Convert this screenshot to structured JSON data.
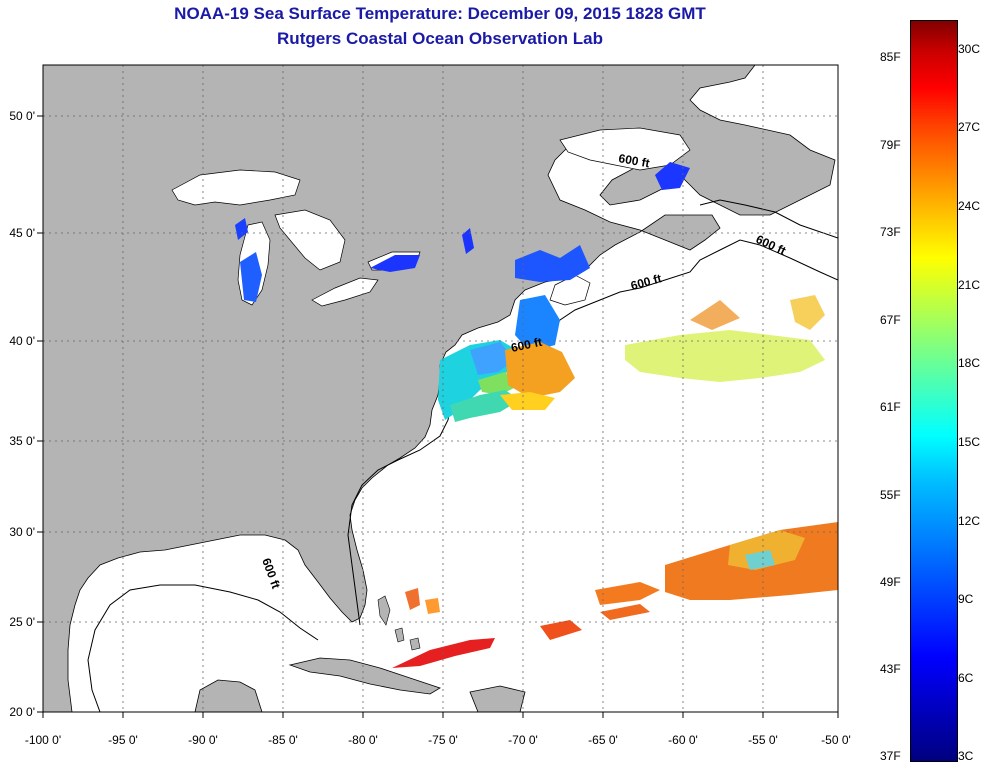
{
  "header": {
    "title_line1": "NOAA-19 Sea Surface Temperature:  December 09, 2015 1828 GMT",
    "title_line2": "Rutgers Coastal Ocean Observation Lab"
  },
  "map": {
    "lon_range": [
      -100,
      -50
    ],
    "lat_range": [
      20,
      52.5
    ],
    "lon_ticks": [
      "-100 0'",
      "-95 0'",
      "-90 0'",
      "-85 0'",
      "-80 0'",
      "-75 0'",
      "-70 0'",
      "-65 0'",
      "-60 0'",
      "-55 0'",
      "-50 0'"
    ],
    "lat_ticks": [
      "20 0'",
      "25 0'",
      "30 0'",
      "35 0'",
      "40 0'",
      "45 0'",
      "50 0'"
    ],
    "isobath_labels": [
      "600 ft",
      "600 ft",
      "600 ft",
      "600 ft",
      "600 ft"
    ],
    "land_color": "#b4b4b4",
    "ocean_color": "#ffffff"
  },
  "colorbar": {
    "fahrenheit": [
      "85F",
      "79F",
      "73F",
      "67F",
      "61F",
      "55F",
      "49F",
      "43F",
      "37F"
    ],
    "celsius": [
      "30C",
      "27C",
      "24C",
      "21C",
      "18C",
      "15C",
      "12C",
      "9C",
      "6C",
      "3C"
    ]
  }
}
